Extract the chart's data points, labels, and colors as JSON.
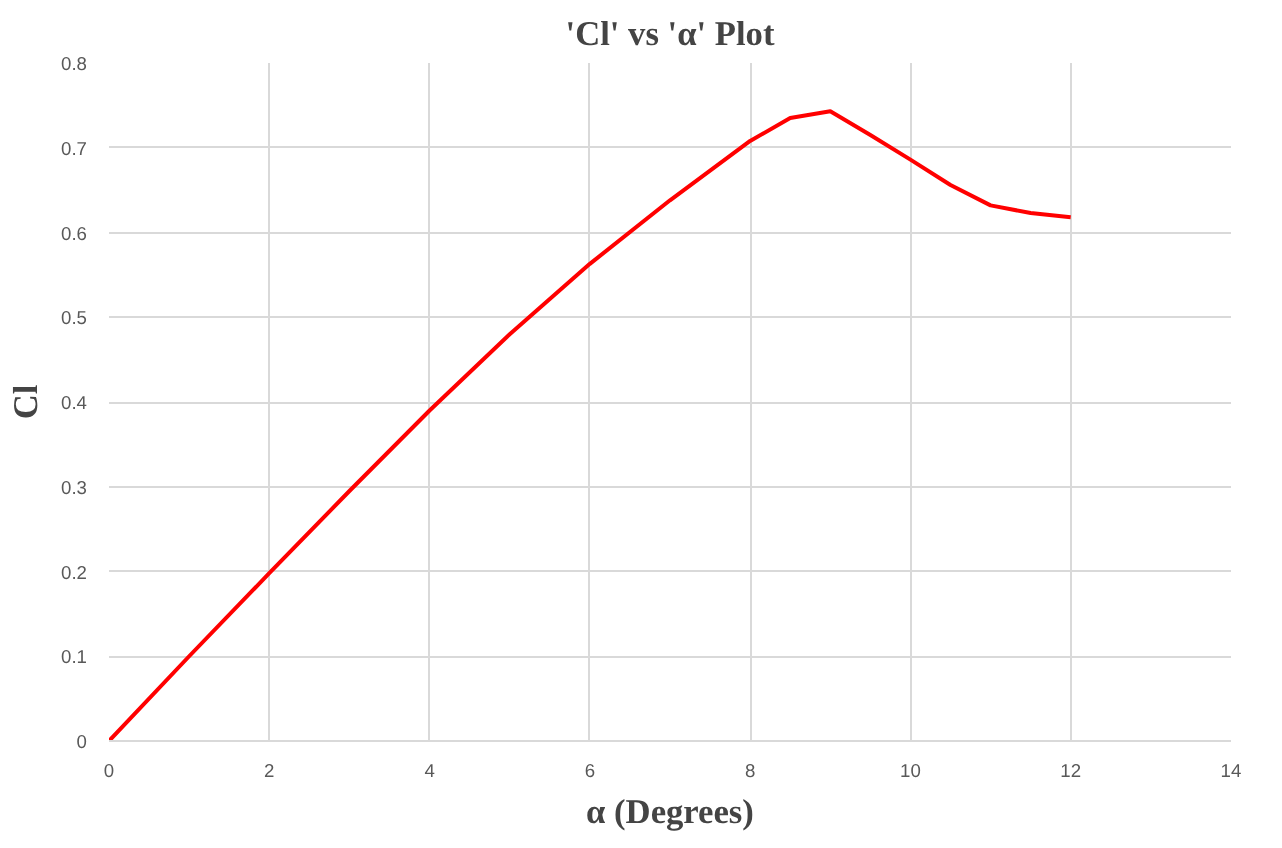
{
  "chart_data": {
    "type": "line",
    "title": "'Cl' vs 'α' Plot",
    "xlabel": "α (Degrees)",
    "ylabel": "Cl",
    "x": [
      0,
      1,
      2,
      3,
      4,
      5,
      6,
      7,
      8,
      8.5,
      9,
      9.5,
      10,
      10.5,
      11,
      11.5,
      12
    ],
    "series": [
      {
        "color": "#ff0000",
        "values": [
          0,
          0.1,
          0.198,
          0.295,
          0.39,
          0.48,
          0.563,
          0.638,
          0.708,
          0.735,
          0.743,
          0.715,
          0.686,
          0.656,
          0.632,
          0.623,
          0.618
        ]
      }
    ],
    "xlim": [
      0,
      14
    ],
    "xticks": [
      0,
      2,
      4,
      6,
      8,
      10,
      12,
      14
    ],
    "ylim": [
      0,
      0.8
    ],
    "yticks": [
      0,
      0.1,
      0.2,
      0.3,
      0.4,
      0.5,
      0.6,
      0.7,
      0.8
    ],
    "grid": true,
    "line_style": "solid"
  }
}
